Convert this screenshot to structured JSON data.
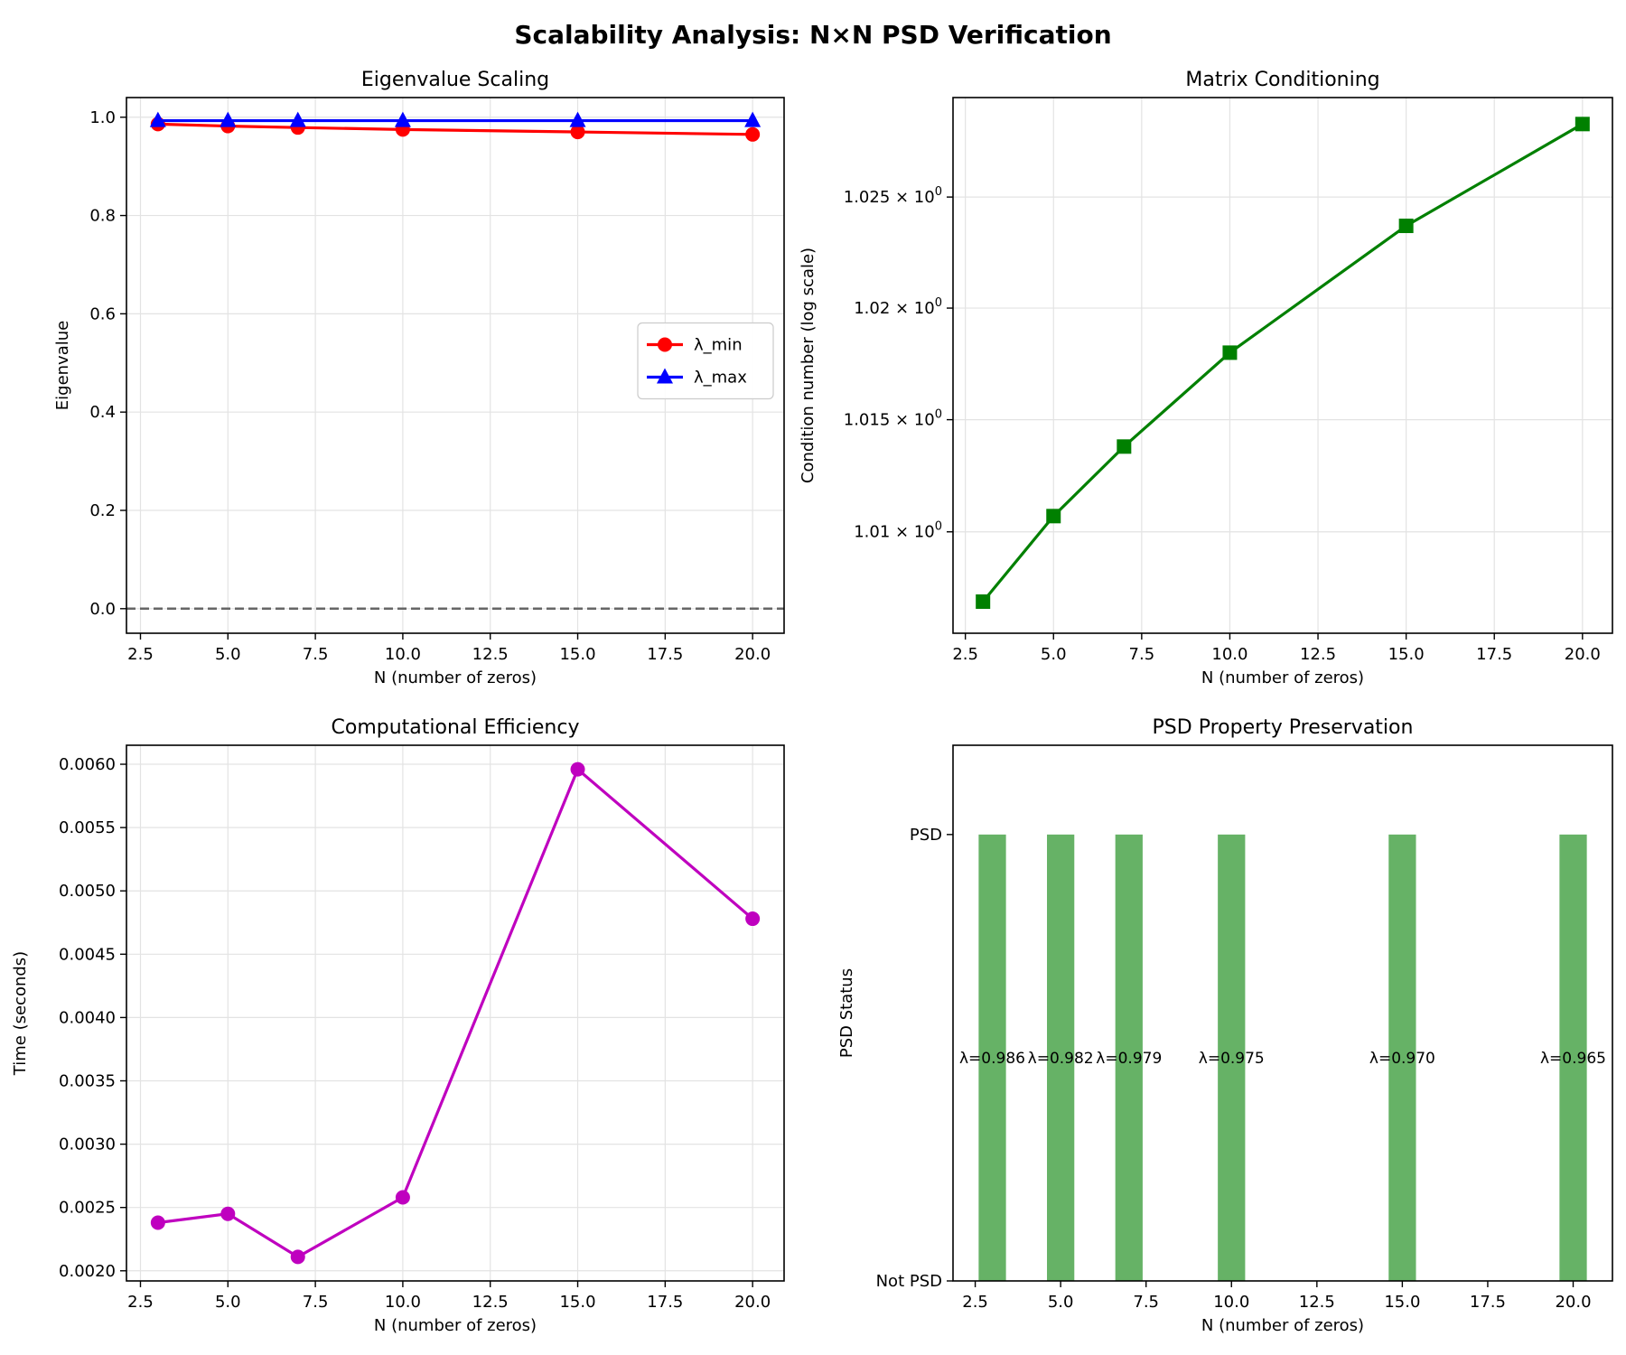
{
  "figure": {
    "title": "Scalability Analysis: N×N PSD Verification"
  },
  "chart_data": [
    {
      "type": "line",
      "title": "Eigenvalue Scaling",
      "xlabel": "N (number of zeros)",
      "ylabel": "Eigenvalue",
      "xlim": [
        2.1,
        20.9
      ],
      "ylim": [
        -0.05,
        1.04
      ],
      "xticks": [
        2.5,
        5.0,
        7.5,
        10.0,
        12.5,
        15.0,
        17.5,
        20.0
      ],
      "xtick_labels": [
        "2.5",
        "5.0",
        "7.5",
        "10.0",
        "12.5",
        "15.0",
        "17.5",
        "20.0"
      ],
      "yticks": [
        0.0,
        0.2,
        0.4,
        0.6,
        0.8,
        1.0
      ],
      "ytick_labels": [
        "0.0",
        "0.2",
        "0.4",
        "0.6",
        "0.8",
        "1.0"
      ],
      "grid": true,
      "legend": "center-right",
      "hline": {
        "y": 0,
        "style": "dashed",
        "color": "#666666"
      },
      "x": [
        3,
        5,
        7,
        10,
        15,
        20
      ],
      "series": [
        {
          "name": "λ_min",
          "color": "#ff0000",
          "marker": "circle",
          "values": [
            0.986,
            0.982,
            0.979,
            0.975,
            0.97,
            0.965
          ]
        },
        {
          "name": "λ_max",
          "color": "#0000ff",
          "marker": "triangle",
          "values": [
            0.993,
            0.993,
            0.993,
            0.993,
            0.993,
            0.993
          ]
        }
      ]
    },
    {
      "type": "line",
      "title": "Matrix Conditioning",
      "xlabel": "N (number of zeros)",
      "ylabel": "Condition number (log scale)",
      "yscale": "log",
      "xlim": [
        2.15,
        20.85
      ],
      "ylim": [
        1.0055,
        1.0295
      ],
      "xticks": [
        2.5,
        5.0,
        7.5,
        10.0,
        12.5,
        15.0,
        17.5,
        20.0
      ],
      "xtick_labels": [
        "2.5",
        "5.0",
        "7.5",
        "10.0",
        "12.5",
        "15.0",
        "17.5",
        "20.0"
      ],
      "yticks": [
        1.01,
        1.015,
        1.02,
        1.025
      ],
      "ytick_labels": [
        "1.01",
        "1.015",
        "1.02",
        "1.025"
      ],
      "grid": true,
      "x": [
        3,
        5,
        7,
        10,
        15,
        20
      ],
      "series": [
        {
          "color": "#008000",
          "marker": "square",
          "values": [
            1.0069,
            1.0107,
            1.0138,
            1.018,
            1.0237,
            1.0283
          ]
        }
      ]
    },
    {
      "type": "line",
      "title": "Computational Efficiency",
      "xlabel": "N (number of zeros)",
      "ylabel": "Time (seconds)",
      "xlim": [
        2.1,
        20.9
      ],
      "ylim": [
        0.00192,
        0.00615
      ],
      "xticks": [
        2.5,
        5.0,
        7.5,
        10.0,
        12.5,
        15.0,
        17.5,
        20.0
      ],
      "xtick_labels": [
        "2.5",
        "5.0",
        "7.5",
        "10.0",
        "12.5",
        "15.0",
        "17.5",
        "20.0"
      ],
      "yticks": [
        0.002,
        0.0025,
        0.003,
        0.0035,
        0.004,
        0.0045,
        0.005,
        0.0055,
        0.006
      ],
      "ytick_labels": [
        "0.0020",
        "0.0025",
        "0.0030",
        "0.0035",
        "0.0040",
        "0.0045",
        "0.0050",
        "0.0055",
        "0.0060"
      ],
      "grid": true,
      "x": [
        3,
        5,
        7,
        10,
        15,
        20
      ],
      "series": [
        {
          "color": "#bf00bf",
          "marker": "circle",
          "values": [
            0.00238,
            0.00245,
            0.00211,
            0.00258,
            0.00596,
            0.00478
          ]
        }
      ]
    },
    {
      "type": "bar",
      "title": "PSD Property Preservation",
      "xlabel": "N (number of zeros)",
      "ylabel": "PSD Status",
      "xlim": [
        1.85,
        21.15
      ],
      "ylim": [
        0,
        1.2
      ],
      "bar_width": 0.8,
      "bar_color": "#66b266",
      "xticks": [
        2.5,
        5.0,
        7.5,
        10.0,
        12.5,
        15.0,
        17.5,
        20.0
      ],
      "xtick_labels": [
        "2.5",
        "5.0",
        "7.5",
        "10.0",
        "12.5",
        "15.0",
        "17.5",
        "20.0"
      ],
      "yticks": [
        0,
        1
      ],
      "ytick_labels": [
        "Not PSD",
        "PSD"
      ],
      "x": [
        3,
        5,
        7,
        10,
        15,
        20
      ],
      "values": [
        1,
        1,
        1,
        1,
        1,
        1
      ],
      "annotations": [
        "λ=0.986",
        "λ=0.982",
        "λ=0.979",
        "λ=0.975",
        "λ=0.970",
        "λ=0.965"
      ],
      "annotation_y": 0.5
    }
  ]
}
